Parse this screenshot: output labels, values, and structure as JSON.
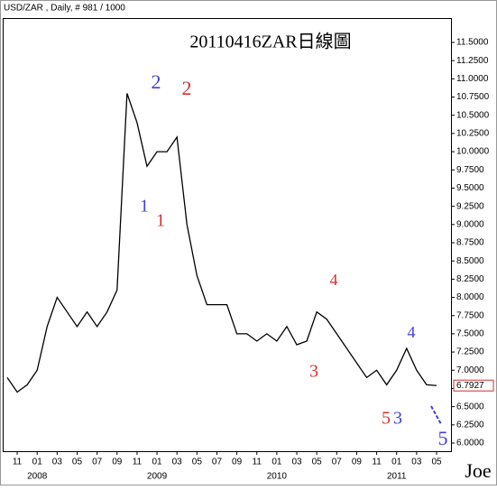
{
  "chart_data": {
    "type": "line",
    "header": "USD/ZAR , Daily, # 981 / 1000",
    "title": "20110416ZAR日線圖",
    "signature": "Joe",
    "last_price": "6.7927",
    "categories": [
      null,
      "11",
      null,
      "01",
      null,
      "03",
      null,
      "05",
      null,
      "07",
      null,
      "09",
      null,
      "11",
      null,
      "01",
      null,
      "03",
      null,
      "05",
      null,
      "07",
      null,
      "09",
      null,
      "11",
      null,
      "01",
      null,
      "03",
      null,
      "05",
      null,
      "07",
      null,
      "09",
      null,
      "11",
      null,
      "01",
      null,
      "03",
      null,
      "05"
    ],
    "years": [
      "2008",
      "2009",
      "2010",
      "2011"
    ],
    "series": [
      {
        "name": "USD/ZAR",
        "color": "#000000",
        "values": [
          6.9,
          6.7,
          6.8,
          7.0,
          7.6,
          8.0,
          7.8,
          7.6,
          7.8,
          7.6,
          7.8,
          8.1,
          10.8,
          10.4,
          9.8,
          10.0,
          10.0,
          10.2,
          9.0,
          8.3,
          7.9,
          7.9,
          7.9,
          7.5,
          7.5,
          7.4,
          7.5,
          7.4,
          7.6,
          7.35,
          7.4,
          7.8,
          7.7,
          7.5,
          7.3,
          7.1,
          6.9,
          7.0,
          6.8,
          7.0,
          7.3,
          7.0,
          6.8,
          6.79
        ]
      }
    ],
    "ylim": [
      6.0,
      11.5
    ],
    "yticks": [
      {
        "value": 6.0,
        "label": "6.0000"
      },
      {
        "value": 6.25,
        "label": "6.2500"
      },
      {
        "value": 6.5,
        "label": "6.5000"
      },
      {
        "value": 6.75,
        "label": "6.7500"
      },
      {
        "value": 7.0,
        "label": "7.0000"
      },
      {
        "value": 7.25,
        "label": "7.2500"
      },
      {
        "value": 7.5,
        "label": "7.5000"
      },
      {
        "value": 7.75,
        "label": "7.7500"
      },
      {
        "value": 8.0,
        "label": "8.0000"
      },
      {
        "value": 8.25,
        "label": "8.2500"
      },
      {
        "value": 8.5,
        "label": "8.5000"
      },
      {
        "value": 8.75,
        "label": "8.7500"
      },
      {
        "value": 9.0,
        "label": "9.0000"
      },
      {
        "value": 9.25,
        "label": "9.2500"
      },
      {
        "value": 9.5,
        "label": "9.5000"
      },
      {
        "value": 9.75,
        "label": "9.7500"
      },
      {
        "value": 10.0,
        "label": "10.0000"
      },
      {
        "value": 10.25,
        "label": "10.2500"
      },
      {
        "value": 10.5,
        "label": "10.5000"
      },
      {
        "value": 10.75,
        "label": "10.7500"
      },
      {
        "value": 11.0,
        "label": "11.0000"
      },
      {
        "value": 11.25,
        "label": "11.2500"
      },
      {
        "value": 11.5,
        "label": "11.5000"
      }
    ],
    "annotations": [
      {
        "text": "1",
        "color": "#4040d0"
      },
      {
        "text": "2",
        "color": "#4040d0"
      },
      {
        "text": "2",
        "color": "#d03030"
      },
      {
        "text": "1",
        "color": "#d03030"
      },
      {
        "text": "4",
        "color": "#d03030"
      },
      {
        "text": "3",
        "color": "#d03030"
      },
      {
        "text": "4",
        "color": "#4040d0"
      },
      {
        "text": "5",
        "color": "#d03030"
      },
      {
        "text": "3",
        "color": "#4040d0"
      },
      {
        "text": "5",
        "color": "#4040d0"
      }
    ]
  }
}
